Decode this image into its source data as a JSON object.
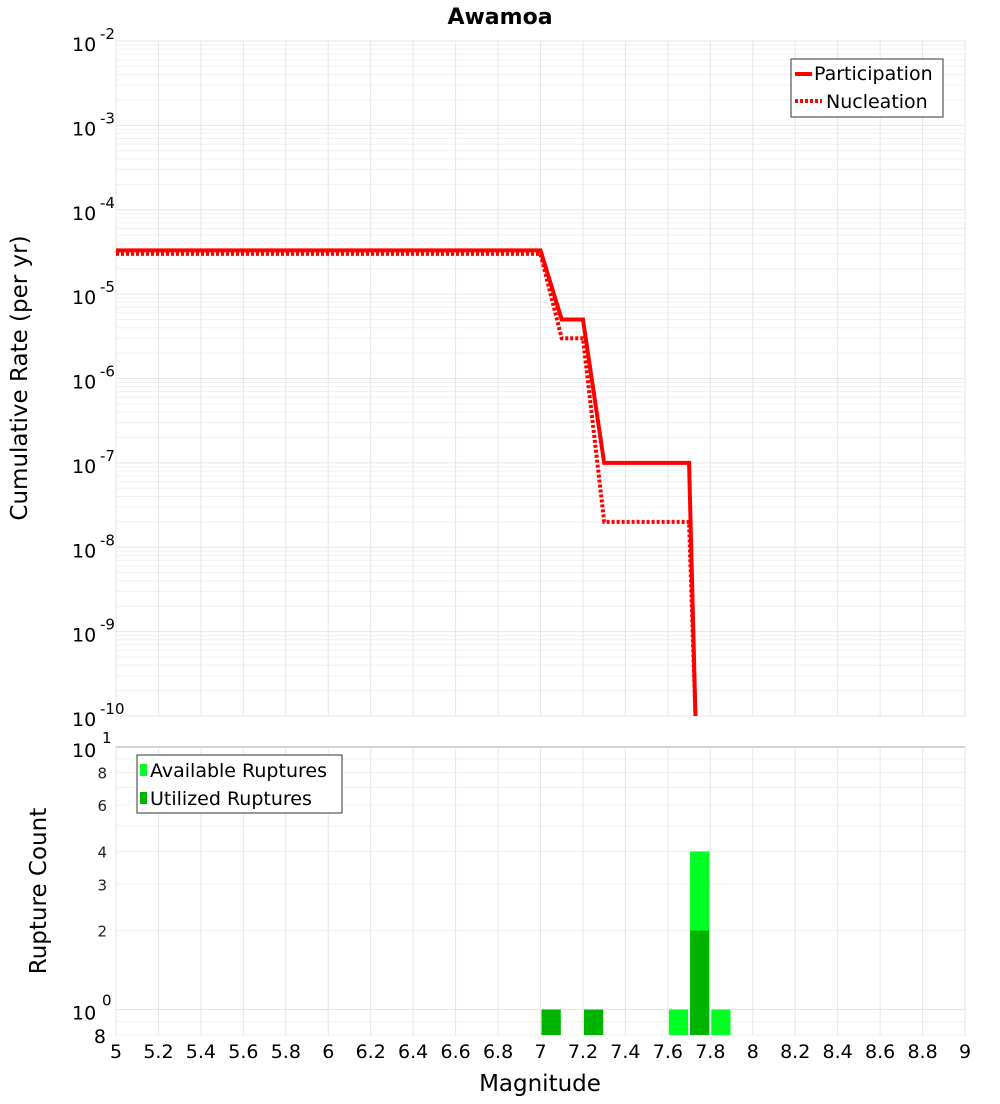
{
  "chart_data": [
    {
      "type": "line",
      "title": "Awamoa",
      "xlabel": "",
      "ylabel": "Cumulative Rate (per yr)",
      "yscale": "log",
      "xlim": [
        5,
        9
      ],
      "ylim": [
        1e-10,
        0.01
      ],
      "y_tick_mantissa": "10",
      "y_tick_exponents": [
        "-10",
        "-9",
        "-8",
        "-7",
        "-6",
        "-5",
        "-4",
        "-3",
        "-2"
      ],
      "legend_position": "top-right",
      "series": [
        {
          "name": "Participation",
          "style": "solid",
          "color": "#ff0000",
          "x": [
            5.0,
            7.0,
            7.1,
            7.2,
            7.3,
            7.7,
            7.73,
            7.73
          ],
          "y": [
            3.3e-05,
            3.3e-05,
            5e-06,
            5e-06,
            1e-07,
            1e-07,
            1e-10,
            1e-10
          ]
        },
        {
          "name": "Nucleation",
          "style": "dotted",
          "color": "#ff0000",
          "x": [
            5.0,
            7.0,
            7.1,
            7.2,
            7.3,
            7.7,
            7.73,
            7.73
          ],
          "y": [
            3e-05,
            3e-05,
            3e-06,
            3e-06,
            2e-08,
            2e-08,
            1e-10,
            1e-10
          ]
        }
      ]
    },
    {
      "type": "bar",
      "title": "",
      "xlabel": "Magnitude",
      "ylabel": "Rupture Count",
      "yscale": "log",
      "xlim": [
        5,
        9
      ],
      "ylim": [
        0.8,
        10
      ],
      "x_ticks": [
        "5",
        "5.2",
        "5.4",
        "5.6",
        "5.8",
        "6",
        "6.2",
        "6.4",
        "6.6",
        "6.8",
        "7",
        "7.2",
        "7.4",
        "7.6",
        "7.8",
        "8",
        "8.2",
        "8.4",
        "8.6",
        "8.8",
        "9"
      ],
      "y_major_ticks": [
        {
          "value": 1,
          "mantissa": "10",
          "exp": "0"
        },
        {
          "value": 10,
          "mantissa": "10",
          "exp": "1"
        }
      ],
      "y_minor_ticks": [
        {
          "value": 0.8,
          "label": "8"
        },
        {
          "value": 2,
          "label": "2"
        },
        {
          "value": 3,
          "label": "3"
        },
        {
          "value": 4,
          "label": "4"
        },
        {
          "value": 6,
          "label": "6"
        },
        {
          "value": 8,
          "label": "8"
        }
      ],
      "legend_position": "top-left",
      "bin_width": 0.1,
      "series": [
        {
          "name": "Available Ruptures",
          "color": "#00ff22",
          "x": [
            7.05,
            7.25,
            7.65,
            7.75,
            7.85
          ],
          "values": [
            1,
            1,
            1,
            4,
            1
          ]
        },
        {
          "name": "Utilized Ruptures",
          "color": "#00b400",
          "x": [
            7.05,
            7.25,
            7.75
          ],
          "values": [
            1,
            1,
            2
          ]
        }
      ]
    }
  ]
}
